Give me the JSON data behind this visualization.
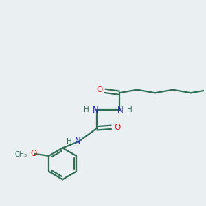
{
  "background_color": "#eaeff1",
  "bond_color": "#2d6e55",
  "nitrogen_color": "#2222cc",
  "oxygen_color": "#cc2222",
  "carbon_color": "#2d6e55",
  "line_width": 1.6,
  "figsize": [
    3.0,
    3.0
  ],
  "dpi": 100,
  "xlim": [
    0,
    10
  ],
  "ylim": [
    0,
    10
  ]
}
